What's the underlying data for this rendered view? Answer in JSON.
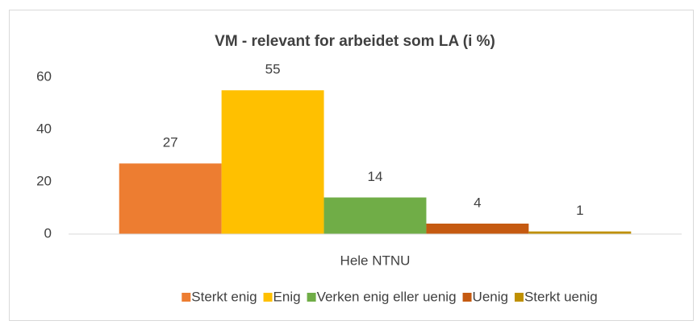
{
  "chart_data": {
    "type": "bar",
    "title": "VM - relevant for arbeidet som LA (i %)",
    "categories": [
      "Hele NTNU"
    ],
    "series": [
      {
        "name": "Sterkt enig",
        "color": "#ed7d31",
        "values": [
          27
        ]
      },
      {
        "name": "Enig",
        "color": "#ffc000",
        "values": [
          55
        ]
      },
      {
        "name": "Verken enig eller uenig",
        "color": "#70ad47",
        "values": [
          14
        ]
      },
      {
        "name": "Uenig",
        "color": "#c55a11",
        "values": [
          4
        ]
      },
      {
        "name": "Sterkt uenig",
        "color": "#bf9000",
        "values": [
          1
        ]
      }
    ],
    "ylim": [
      0,
      70
    ],
    "yticks": [
      0,
      20,
      40,
      60
    ],
    "grid": false,
    "legend": "bottom"
  }
}
